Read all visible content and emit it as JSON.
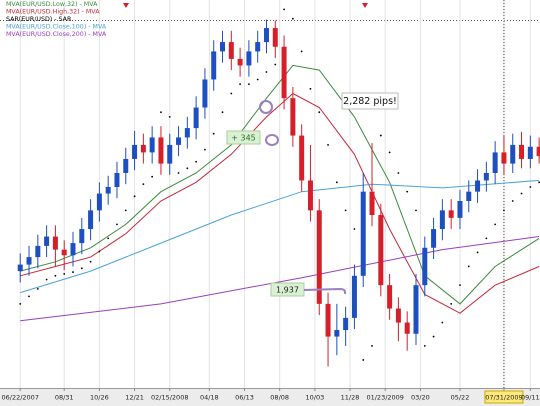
{
  "chart_data": {
    "type": "candlestick",
    "up_color": "#1d4fc0",
    "down_color": "#d5202a",
    "xlim": [
      -2.3,
      59.1
    ],
    "ylim": [
      1.21,
      1.625
    ],
    "xticks": [
      {
        "value": 0,
        "label": "06/22/2007"
      },
      {
        "value": 5,
        "label": "08/31"
      },
      {
        "value": 9,
        "label": "10/26"
      },
      {
        "value": 13,
        "label": "12/21"
      },
      {
        "value": 17,
        "label": "02/15/2008"
      },
      {
        "value": 21.5,
        "label": "04/18"
      },
      {
        "value": 25.5,
        "label": "06/13"
      },
      {
        "value": 29.5,
        "label": "08/08"
      },
      {
        "value": 33.5,
        "label": "10/03"
      },
      {
        "value": 37.5,
        "label": "11/28"
      },
      {
        "value": 41.5,
        "label": "01/23/2009"
      },
      {
        "value": 45.5,
        "label": "03/20"
      },
      {
        "value": 50,
        "label": "05/22"
      },
      {
        "value": 55,
        "label": "07/31/2009"
      },
      {
        "value": 58,
        "label": "09/11"
      }
    ],
    "highlighted_xtick": 13,
    "grid": true,
    "legend": "top-left",
    "open": [
      1.335,
      1.342,
      1.35,
      1.362,
      1.372,
      1.358,
      1.352,
      1.365,
      1.38,
      1.4,
      1.418,
      1.425,
      1.44,
      1.455,
      1.47,
      1.462,
      1.478,
      1.45,
      1.47,
      1.478,
      1.488,
      1.51,
      1.54,
      1.57,
      1.58,
      1.562,
      1.555,
      1.57,
      1.58,
      1.595,
      1.575,
      1.52,
      1.48,
      1.432,
      1.4,
      1.3,
      1.265,
      1.272,
      1.285,
      1.33,
      1.42,
      1.395,
      1.32,
      1.295,
      1.28,
      1.268,
      1.32,
      1.36,
      1.38,
      1.4,
      1.392,
      1.41,
      1.42,
      1.432,
      1.44,
      1.462,
      1.45,
      1.47,
      1.455,
      1.468
    ],
    "high": [
      1.354,
      1.362,
      1.374,
      1.384,
      1.384,
      1.368,
      1.377,
      1.392,
      1.412,
      1.43,
      1.437,
      1.452,
      1.467,
      1.485,
      1.482,
      1.49,
      1.49,
      1.482,
      1.49,
      1.5,
      1.522,
      1.552,
      1.582,
      1.592,
      1.592,
      1.574,
      1.582,
      1.592,
      1.604,
      1.603,
      1.587,
      1.532,
      1.492,
      1.47,
      1.412,
      1.312,
      1.3,
      1.297,
      1.342,
      1.44,
      1.472,
      1.407,
      1.332,
      1.307,
      1.292,
      1.332,
      1.372,
      1.392,
      1.412,
      1.412,
      1.422,
      1.432,
      1.444,
      1.452,
      1.474,
      1.48,
      1.482,
      1.484,
      1.48,
      1.478
    ],
    "low": [
      1.323,
      1.33,
      1.338,
      1.35,
      1.34,
      1.336,
      1.34,
      1.353,
      1.368,
      1.388,
      1.406,
      1.413,
      1.428,
      1.443,
      1.45,
      1.45,
      1.438,
      1.438,
      1.458,
      1.466,
      1.476,
      1.498,
      1.528,
      1.558,
      1.55,
      1.543,
      1.543,
      1.558,
      1.568,
      1.563,
      1.508,
      1.468,
      1.42,
      1.388,
      1.288,
      1.233,
      1.245,
      1.255,
      1.273,
      1.318,
      1.383,
      1.308,
      1.283,
      1.26,
      1.25,
      1.256,
      1.308,
      1.348,
      1.368,
      1.38,
      1.38,
      1.398,
      1.408,
      1.42,
      1.428,
      1.438,
      1.44,
      1.445,
      1.445,
      1.45
    ],
    "close": [
      1.342,
      1.35,
      1.362,
      1.372,
      1.358,
      1.352,
      1.365,
      1.38,
      1.4,
      1.418,
      1.425,
      1.44,
      1.455,
      1.47,
      1.462,
      1.478,
      1.45,
      1.47,
      1.478,
      1.488,
      1.51,
      1.54,
      1.57,
      1.58,
      1.562,
      1.555,
      1.57,
      1.58,
      1.595,
      1.575,
      1.52,
      1.48,
      1.432,
      1.4,
      1.3,
      1.265,
      1.272,
      1.285,
      1.33,
      1.42,
      1.395,
      1.32,
      1.295,
      1.28,
      1.268,
      1.32,
      1.36,
      1.38,
      1.4,
      1.392,
      1.41,
      1.42,
      1.432,
      1.44,
      1.462,
      1.45,
      1.47,
      1.455,
      1.468,
      1.458
    ],
    "overlays": [
      {
        "name": "MVA(EUR/USD.Low,32) - MVA",
        "color": "#3c8c3c",
        "style": "line",
        "x": [
          0,
          4,
          8,
          12,
          16,
          20,
          24,
          28,
          31,
          34,
          38,
          42,
          46,
          50,
          54,
          59
        ],
        "values": [
          1.335,
          1.345,
          1.36,
          1.385,
          1.42,
          1.44,
          1.47,
          1.52,
          1.555,
          1.55,
          1.5,
          1.43,
          1.33,
          1.3,
          1.34,
          1.37
        ]
      },
      {
        "name": "MVA(EUR/USD.High,32) - MVA",
        "color": "#c8283a",
        "style": "line",
        "x": [
          0,
          4,
          8,
          12,
          16,
          20,
          24,
          28,
          31,
          34,
          38,
          42,
          46,
          50,
          54,
          59
        ],
        "values": [
          1.33,
          1.34,
          1.35,
          1.375,
          1.41,
          1.43,
          1.46,
          1.5,
          1.525,
          1.51,
          1.46,
          1.38,
          1.31,
          1.29,
          1.32,
          1.34
        ]
      },
      {
        "name": "SAR(EUR/USD) - SAR",
        "color": "#000000",
        "style": "dots",
        "values": [
          1.3,
          1.308,
          1.316,
          1.326,
          1.33,
          1.332,
          1.334,
          1.338,
          1.345,
          1.356,
          1.37,
          1.385,
          1.4,
          1.415,
          1.428,
          1.436,
          1.505,
          1.5,
          1.44,
          1.445,
          1.452,
          1.465,
          1.482,
          1.505,
          1.525,
          1.535,
          1.535,
          1.54,
          1.548,
          1.556,
          1.615,
          1.605,
          1.57,
          1.53,
          1.505,
          1.47,
          1.43,
          1.4,
          1.38,
          1.24,
          1.255,
          1.48,
          1.462,
          1.44,
          1.42,
          1.4,
          1.255,
          1.265,
          1.28,
          1.3,
          1.32,
          1.34,
          1.355,
          1.37,
          1.385,
          1.4,
          1.41,
          1.418,
          1.425,
          1.43
        ]
      },
      {
        "name": "MVA(EUR/USD.Close,100) - MVA",
        "color": "#4aa3d8",
        "style": "line",
        "x": [
          0,
          8,
          16,
          24,
          32,
          40,
          48,
          59
        ],
        "values": [
          1.312,
          1.335,
          1.365,
          1.395,
          1.42,
          1.428,
          1.424,
          1.432
        ]
      },
      {
        "name": "MVA(EUR/USD.Close,200) - MVA",
        "color": "#9a3cc0",
        "style": "line",
        "x": [
          0,
          16,
          32,
          48,
          59
        ],
        "values": [
          1.282,
          1.3,
          1.328,
          1.358,
          1.372
        ]
      }
    ],
    "annotations": [
      {
        "text": "2,282 pips!"
      },
      {
        "text": "+ 345"
      },
      {
        "text": "1,937"
      }
    ]
  }
}
